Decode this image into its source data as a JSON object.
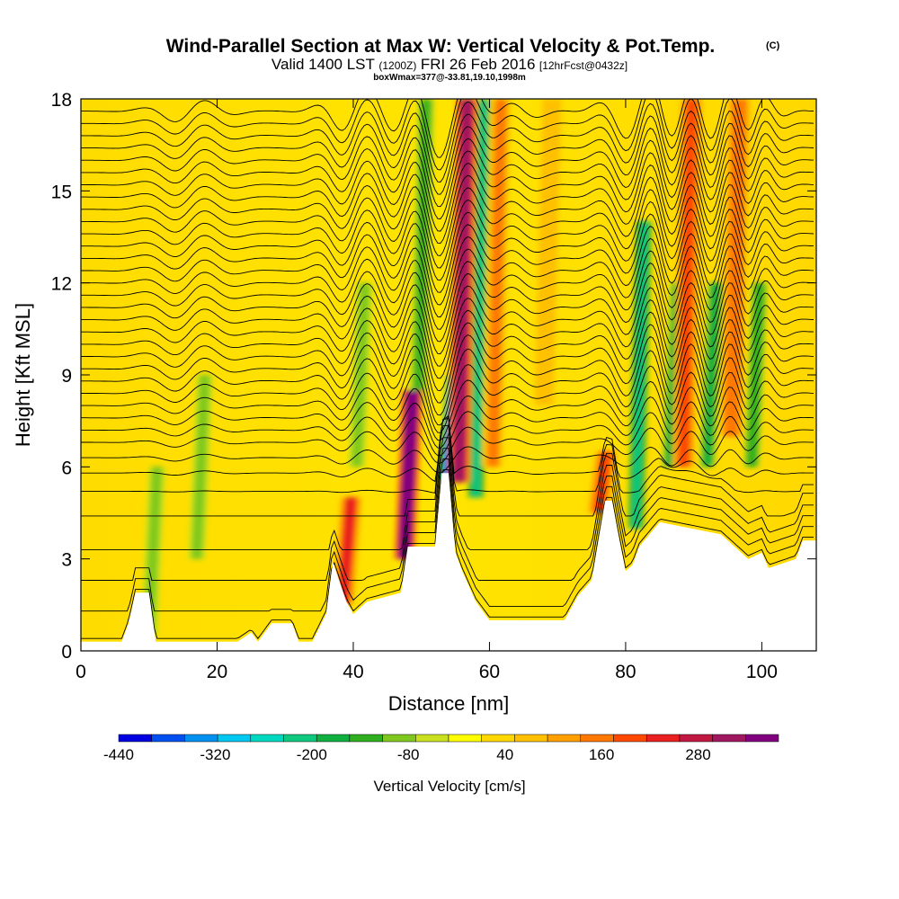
{
  "title": {
    "main": "Wind-Parallel Section at Max W: Vertical Velocity & Pot.Temp.",
    "copyright": "(C)",
    "line2_a": "Valid 1400 LST",
    "line2_b": "(1200Z)",
    "line2_c": "FRI 26 Feb 2016",
    "line2_d": "[12hrFcst@0432z]",
    "line3": "boxWmax=377@-33.81,19.10,1998m"
  },
  "chart_data": {
    "type": "heatmap",
    "xlabel": "Distance [nm]",
    "ylabel": "Height [Kft MSL]",
    "xlim": [
      0,
      108
    ],
    "ylim": [
      0,
      18
    ],
    "x_ticks": [
      0,
      20,
      40,
      60,
      80,
      100
    ],
    "y_ticks": [
      0,
      3,
      6,
      9,
      12,
      15,
      18
    ],
    "colorbar": {
      "label": "Vertical Velocity [cm/s]",
      "tick_labels": [
        "-440",
        "-320",
        "-200",
        "-80",
        "40",
        "160",
        "280"
      ],
      "tick_values": [
        -440,
        -320,
        -200,
        -80,
        40,
        160,
        280
      ],
      "range": [
        -440,
        380
      ],
      "colors": [
        "#0000e0",
        "#0050f0",
        "#0090f0",
        "#00c8f0",
        "#00d8c0",
        "#10c880",
        "#10b040",
        "#30b020",
        "#80c820",
        "#c8e020",
        "#ffff00",
        "#ffd800",
        "#ffc000",
        "#ffa000",
        "#ff7800",
        "#ff4800",
        "#e82020",
        "#c01840",
        "#a01860",
        "#800080"
      ]
    },
    "terrain": [
      [
        0,
        0.3
      ],
      [
        6,
        0.3
      ],
      [
        7,
        0.9
      ],
      [
        8,
        1.9
      ],
      [
        10,
        1.9
      ],
      [
        11,
        0.3
      ],
      [
        23,
        0.3
      ],
      [
        25,
        0.6
      ],
      [
        26,
        0.3
      ],
      [
        27,
        0.6
      ],
      [
        28,
        0.9
      ],
      [
        31,
        0.9
      ],
      [
        32,
        0.3
      ],
      [
        34,
        0.3
      ],
      [
        36,
        1.2
      ],
      [
        37,
        2.9
      ],
      [
        39,
        1.6
      ],
      [
        40,
        1.2
      ],
      [
        42,
        1.6
      ],
      [
        47,
        1.9
      ],
      [
        48,
        3.4
      ],
      [
        52,
        3.4
      ],
      [
        53,
        5.8
      ],
      [
        54,
        5.8
      ],
      [
        55,
        3.2
      ],
      [
        56,
        2.6
      ],
      [
        57,
        2.1
      ],
      [
        58,
        1.6
      ],
      [
        60,
        1.0
      ],
      [
        71,
        1.0
      ],
      [
        73,
        1.8
      ],
      [
        75,
        2.3
      ],
      [
        77,
        4.9
      ],
      [
        78,
        4.9
      ],
      [
        79,
        3.7
      ],
      [
        80,
        2.6
      ],
      [
        81,
        2.8
      ],
      [
        82,
        3.4
      ],
      [
        85,
        4.2
      ],
      [
        94,
        3.8
      ],
      [
        98,
        3.0
      ],
      [
        100,
        3.2
      ],
      [
        101,
        2.7
      ],
      [
        105,
        3.0
      ],
      [
        106,
        3.6
      ],
      [
        108,
        3.6
      ]
    ],
    "updrafts": [
      {
        "x": 55.5,
        "y_range": [
          5.5,
          18
        ],
        "w": 330
      },
      {
        "x": 47.5,
        "y_range": [
          3.0,
          8.5
        ],
        "w": 377
      },
      {
        "x": 38.5,
        "y_range": [
          1.5,
          5.0
        ],
        "w": 220
      },
      {
        "x": 76.0,
        "y_range": [
          4.5,
          6.5
        ],
        "w": 200
      },
      {
        "x": 88.5,
        "y_range": [
          6.0,
          18
        ],
        "w": 180
      },
      {
        "x": 95.5,
        "y_range": [
          7.0,
          18
        ],
        "w": 170
      },
      {
        "x": 60.5,
        "y_range": [
          6.0,
          18
        ],
        "w": 140
      },
      {
        "x": 68.0,
        "y_range": [
          8.0,
          18
        ],
        "w": 90
      }
    ],
    "downdrafts": [
      {
        "x": 53.8,
        "y_range": [
          5.5,
          9.0
        ],
        "w": -400
      },
      {
        "x": 58.0,
        "y_range": [
          5.0,
          18
        ],
        "w": -220
      },
      {
        "x": 81.5,
        "y_range": [
          4.0,
          14.0
        ],
        "w": -210
      },
      {
        "x": 86.5,
        "y_range": [
          6.0,
          12.0
        ],
        "w": -170
      },
      {
        "x": 92.0,
        "y_range": [
          6.0,
          12.0
        ],
        "w": -160
      },
      {
        "x": 98.5,
        "y_range": [
          6.0,
          12.0
        ],
        "w": -150
      },
      {
        "x": 40.5,
        "y_range": [
          6.0,
          12.0
        ],
        "w": -110
      },
      {
        "x": 49.5,
        "y_range": [
          8.0,
          18
        ],
        "w": -130
      },
      {
        "x": 10.0,
        "y_range": [
          0.5,
          6.0
        ],
        "w": -100
      },
      {
        "x": 17.0,
        "y_range": [
          3.0,
          9.0
        ],
        "w": -90
      }
    ],
    "isentrope_levels": [
      0.3,
      1.3,
      2.3,
      3.3,
      4.4,
      5.2,
      5.8,
      6.3,
      6.8,
      7.2,
      7.6,
      8.0,
      8.4,
      8.8,
      9.2,
      9.6,
      10.0,
      10.4,
      10.8,
      11.2,
      11.6,
      12.0,
      12.4,
      12.8,
      13.2,
      13.6,
      14.0,
      14.4,
      14.8,
      15.2,
      15.6,
      16.0,
      16.4,
      16.8,
      17.2,
      17.6
    ]
  }
}
